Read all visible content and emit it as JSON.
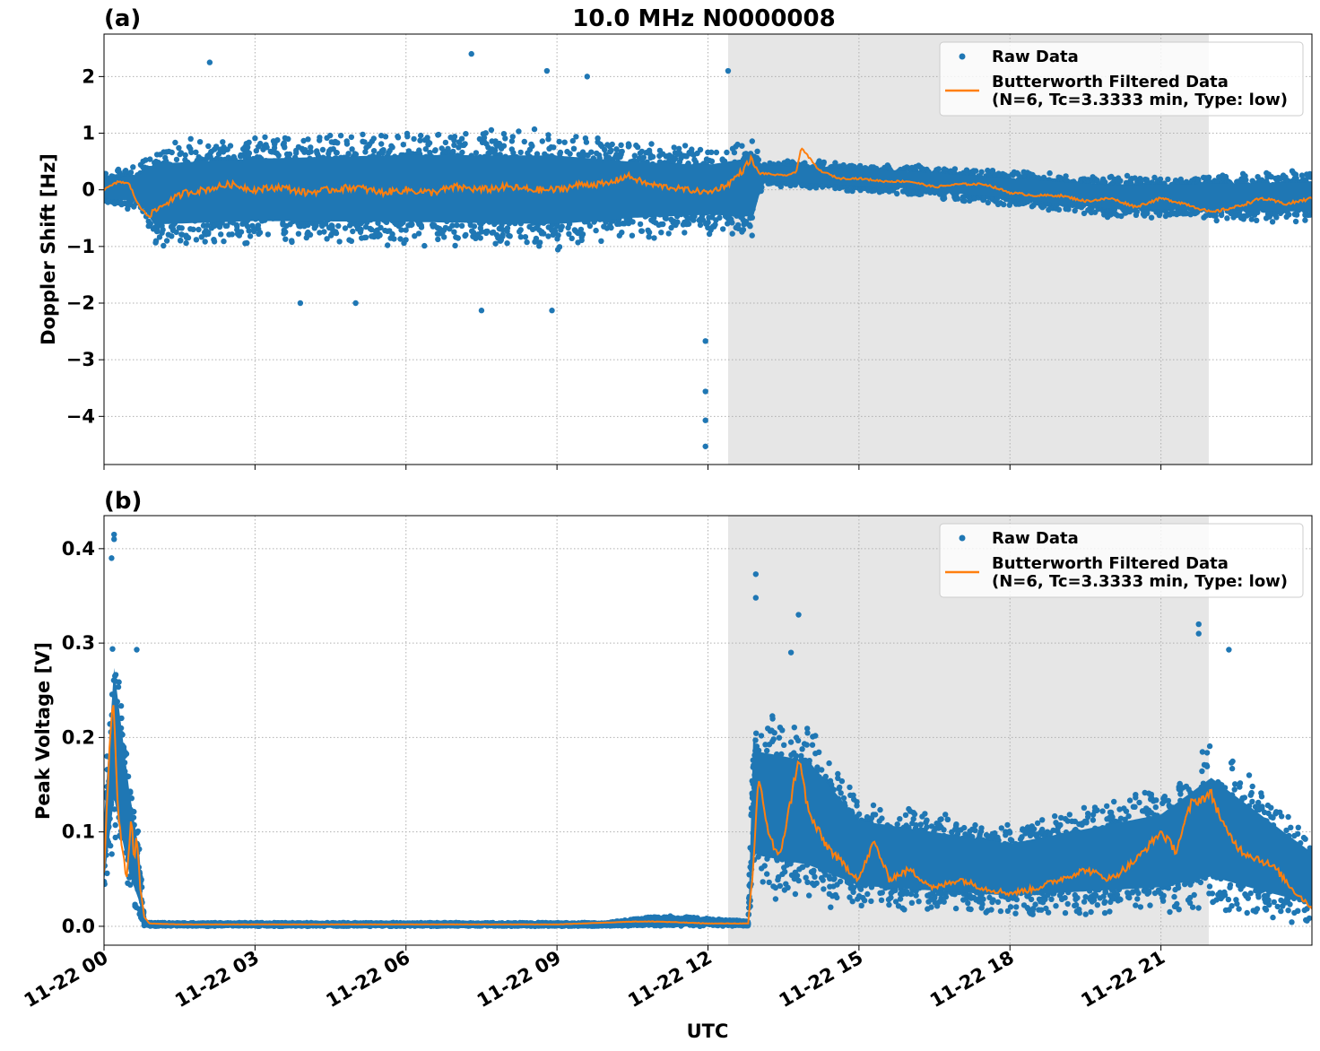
{
  "figure": {
    "title": "10.0 MHz N0000008",
    "xlabel": "UTC"
  },
  "colors": {
    "raw": "#1f77b4",
    "filtered": "#ff7f0e",
    "shade": "#e6e6e6",
    "grid": "#b0b0b0"
  },
  "legend": {
    "raw_label": "Raw Data",
    "filtered_label_line1": "Butterworth Filtered Data",
    "filtered_label_line2": "(N=6, Tc=3.3333 min, Type: low)",
    "placement": "top-right"
  },
  "chart_data": [
    {
      "type": "scatter",
      "panel_label": "(a)",
      "ylabel": "Doppler Shift [Hz]",
      "xlim_hours": [
        0,
        24
      ],
      "ylim": [
        -4.85,
        2.75
      ],
      "yticks": [
        2,
        1,
        0,
        -1,
        -2,
        -3,
        -4
      ],
      "ytick_labels": [
        "2",
        "1",
        "0",
        "−1",
        "−2",
        "−3",
        "−4"
      ],
      "xticks_hours": [
        0,
        3,
        6,
        9,
        12,
        15,
        18,
        21
      ],
      "grid": true,
      "shade_hours": [
        12.4,
        21.95
      ],
      "outliers": [
        [
          11.95,
          -2.67
        ],
        [
          11.95,
          -3.56
        ],
        [
          11.95,
          -4.07
        ],
        [
          11.95,
          -4.53
        ],
        [
          2.1,
          2.25
        ],
        [
          7.3,
          2.4
        ],
        [
          12.4,
          2.1
        ],
        [
          5.0,
          -2.0
        ],
        [
          3.9,
          -2.0
        ],
        [
          7.5,
          -2.13
        ],
        [
          8.9,
          -2.13
        ],
        [
          8.8,
          2.1
        ],
        [
          9.6,
          2.0
        ]
      ],
      "series": [
        {
          "name": "Butterworth Filtered Data",
          "x_hours": [
            0.0,
            0.3,
            0.5,
            0.7,
            0.9,
            1.2,
            1.6,
            2.0,
            2.5,
            3.0,
            3.5,
            4.0,
            4.5,
            5.0,
            5.5,
            6.0,
            6.5,
            7.0,
            7.5,
            8.0,
            8.5,
            9.0,
            9.5,
            10.0,
            10.4,
            10.8,
            11.2,
            11.6,
            12.0,
            12.4,
            12.7,
            12.85,
            13.0,
            13.5,
            13.75,
            13.85,
            14.2,
            14.6,
            15.0,
            15.5,
            16.0,
            16.5,
            17.0,
            17.5,
            18.0,
            18.5,
            19.0,
            19.5,
            20.0,
            20.5,
            21.0,
            21.5,
            22.0,
            22.5,
            23.0,
            23.5,
            24.0
          ],
          "values": [
            0.0,
            0.15,
            0.1,
            -0.3,
            -0.45,
            -0.25,
            -0.05,
            0.0,
            0.1,
            0.0,
            0.05,
            -0.05,
            0.0,
            0.05,
            -0.05,
            0.0,
            -0.05,
            0.05,
            0.0,
            0.05,
            0.0,
            0.0,
            0.1,
            0.1,
            0.25,
            0.1,
            0.05,
            0.0,
            -0.05,
            0.1,
            0.35,
            0.55,
            0.3,
            0.25,
            0.3,
            0.75,
            0.35,
            0.2,
            0.2,
            0.15,
            0.15,
            0.05,
            0.1,
            0.1,
            -0.05,
            -0.1,
            -0.1,
            -0.2,
            -0.15,
            -0.3,
            -0.15,
            -0.25,
            -0.4,
            -0.3,
            -0.15,
            -0.25,
            -0.15
          ]
        },
        {
          "name": "Raw Data",
          "spread_x_hours": [
            0.0,
            0.7,
            1.0,
            3.0,
            6.0,
            9.0,
            10.5,
            12.0,
            12.9,
            13.1,
            16.0,
            20.0,
            24.0
          ],
          "spread_upper": [
            0.35,
            0.45,
            0.9,
            1.0,
            1.1,
            1.1,
            0.9,
            0.8,
            1.0,
            0.55,
            0.45,
            0.25,
            0.35
          ],
          "spread_lower": [
            -0.3,
            -0.4,
            -1.05,
            -1.0,
            -1.05,
            -1.1,
            -0.9,
            -0.8,
            -0.9,
            0.05,
            -0.1,
            -0.5,
            -0.6
          ]
        }
      ]
    },
    {
      "type": "scatter",
      "panel_label": "(b)",
      "ylabel": "Peak Voltage [V]",
      "xlim_hours": [
        0,
        24
      ],
      "ylim": [
        -0.02,
        0.435
      ],
      "yticks": [
        0.0,
        0.1,
        0.2,
        0.3,
        0.4
      ],
      "ytick_labels": [
        "0.0",
        "0.1",
        "0.2",
        "0.3",
        "0.4"
      ],
      "xticks_hours": [
        0,
        3,
        6,
        9,
        12,
        15,
        18,
        21
      ],
      "xtick_labels": [
        "11-22 00",
        "11-22 03",
        "11-22 06",
        "11-22 09",
        "11-22 12",
        "11-22 15",
        "11-22 18",
        "11-22 21"
      ],
      "grid": true,
      "shade_hours": [
        12.4,
        21.95
      ],
      "outliers": [
        [
          0.2,
          0.415
        ],
        [
          0.2,
          0.41
        ],
        [
          0.15,
          0.39
        ],
        [
          0.65,
          0.293
        ],
        [
          12.95,
          0.373
        ],
        [
          12.95,
          0.348
        ],
        [
          13.8,
          0.33
        ],
        [
          21.75,
          0.32
        ],
        [
          22.35,
          0.293
        ],
        [
          21.75,
          0.31
        ],
        [
          13.65,
          0.29
        ]
      ],
      "series": [
        {
          "name": "Butterworth Filtered Data",
          "x_hours": [
            0.0,
            0.1,
            0.15,
            0.2,
            0.28,
            0.35,
            0.45,
            0.55,
            0.6,
            0.65,
            0.72,
            0.8,
            0.9,
            1.5,
            3.0,
            6.0,
            9.0,
            10.5,
            11.0,
            12.0,
            12.8,
            12.9,
            13.0,
            13.2,
            13.4,
            13.6,
            13.8,
            14.0,
            14.3,
            14.6,
            15.0,
            15.3,
            15.6,
            16.0,
            16.5,
            17.0,
            17.5,
            18.0,
            18.5,
            19.0,
            19.5,
            20.0,
            20.5,
            21.0,
            21.3,
            21.6,
            22.0,
            22.3,
            22.6,
            23.0,
            23.3,
            23.6,
            24.0
          ],
          "values": [
            0.06,
            0.18,
            0.22,
            0.23,
            0.12,
            0.09,
            0.05,
            0.12,
            0.06,
            0.1,
            0.04,
            0.01,
            0.003,
            0.002,
            0.002,
            0.002,
            0.002,
            0.005,
            0.005,
            0.003,
            0.003,
            0.06,
            0.16,
            0.1,
            0.07,
            0.12,
            0.18,
            0.12,
            0.09,
            0.07,
            0.05,
            0.09,
            0.05,
            0.06,
            0.04,
            0.05,
            0.04,
            0.035,
            0.04,
            0.05,
            0.06,
            0.05,
            0.07,
            0.1,
            0.08,
            0.13,
            0.14,
            0.1,
            0.08,
            0.07,
            0.06,
            0.04,
            0.02
          ]
        },
        {
          "name": "Raw Data",
          "spread_x_hours": [
            0.0,
            0.2,
            0.5,
            0.7,
            0.8,
            1.0,
            10.0,
            11.0,
            12.8,
            12.9,
            13.0,
            14.0,
            15.0,
            18.0,
            21.0,
            22.0,
            23.0,
            24.0
          ],
          "spread_upper": [
            0.14,
            0.33,
            0.18,
            0.1,
            0.005,
            0.004,
            0.004,
            0.012,
            0.006,
            0.25,
            0.23,
            0.22,
            0.14,
            0.11,
            0.15,
            0.2,
            0.15,
            0.1
          ],
          "spread_lower": [
            0.02,
            0.08,
            0.02,
            0.005,
            0.0,
            0.0,
            0.0,
            0.0,
            0.0,
            0.03,
            0.03,
            0.02,
            0.015,
            0.01,
            0.01,
            0.01,
            0.005,
            0.002
          ]
        }
      ]
    }
  ]
}
